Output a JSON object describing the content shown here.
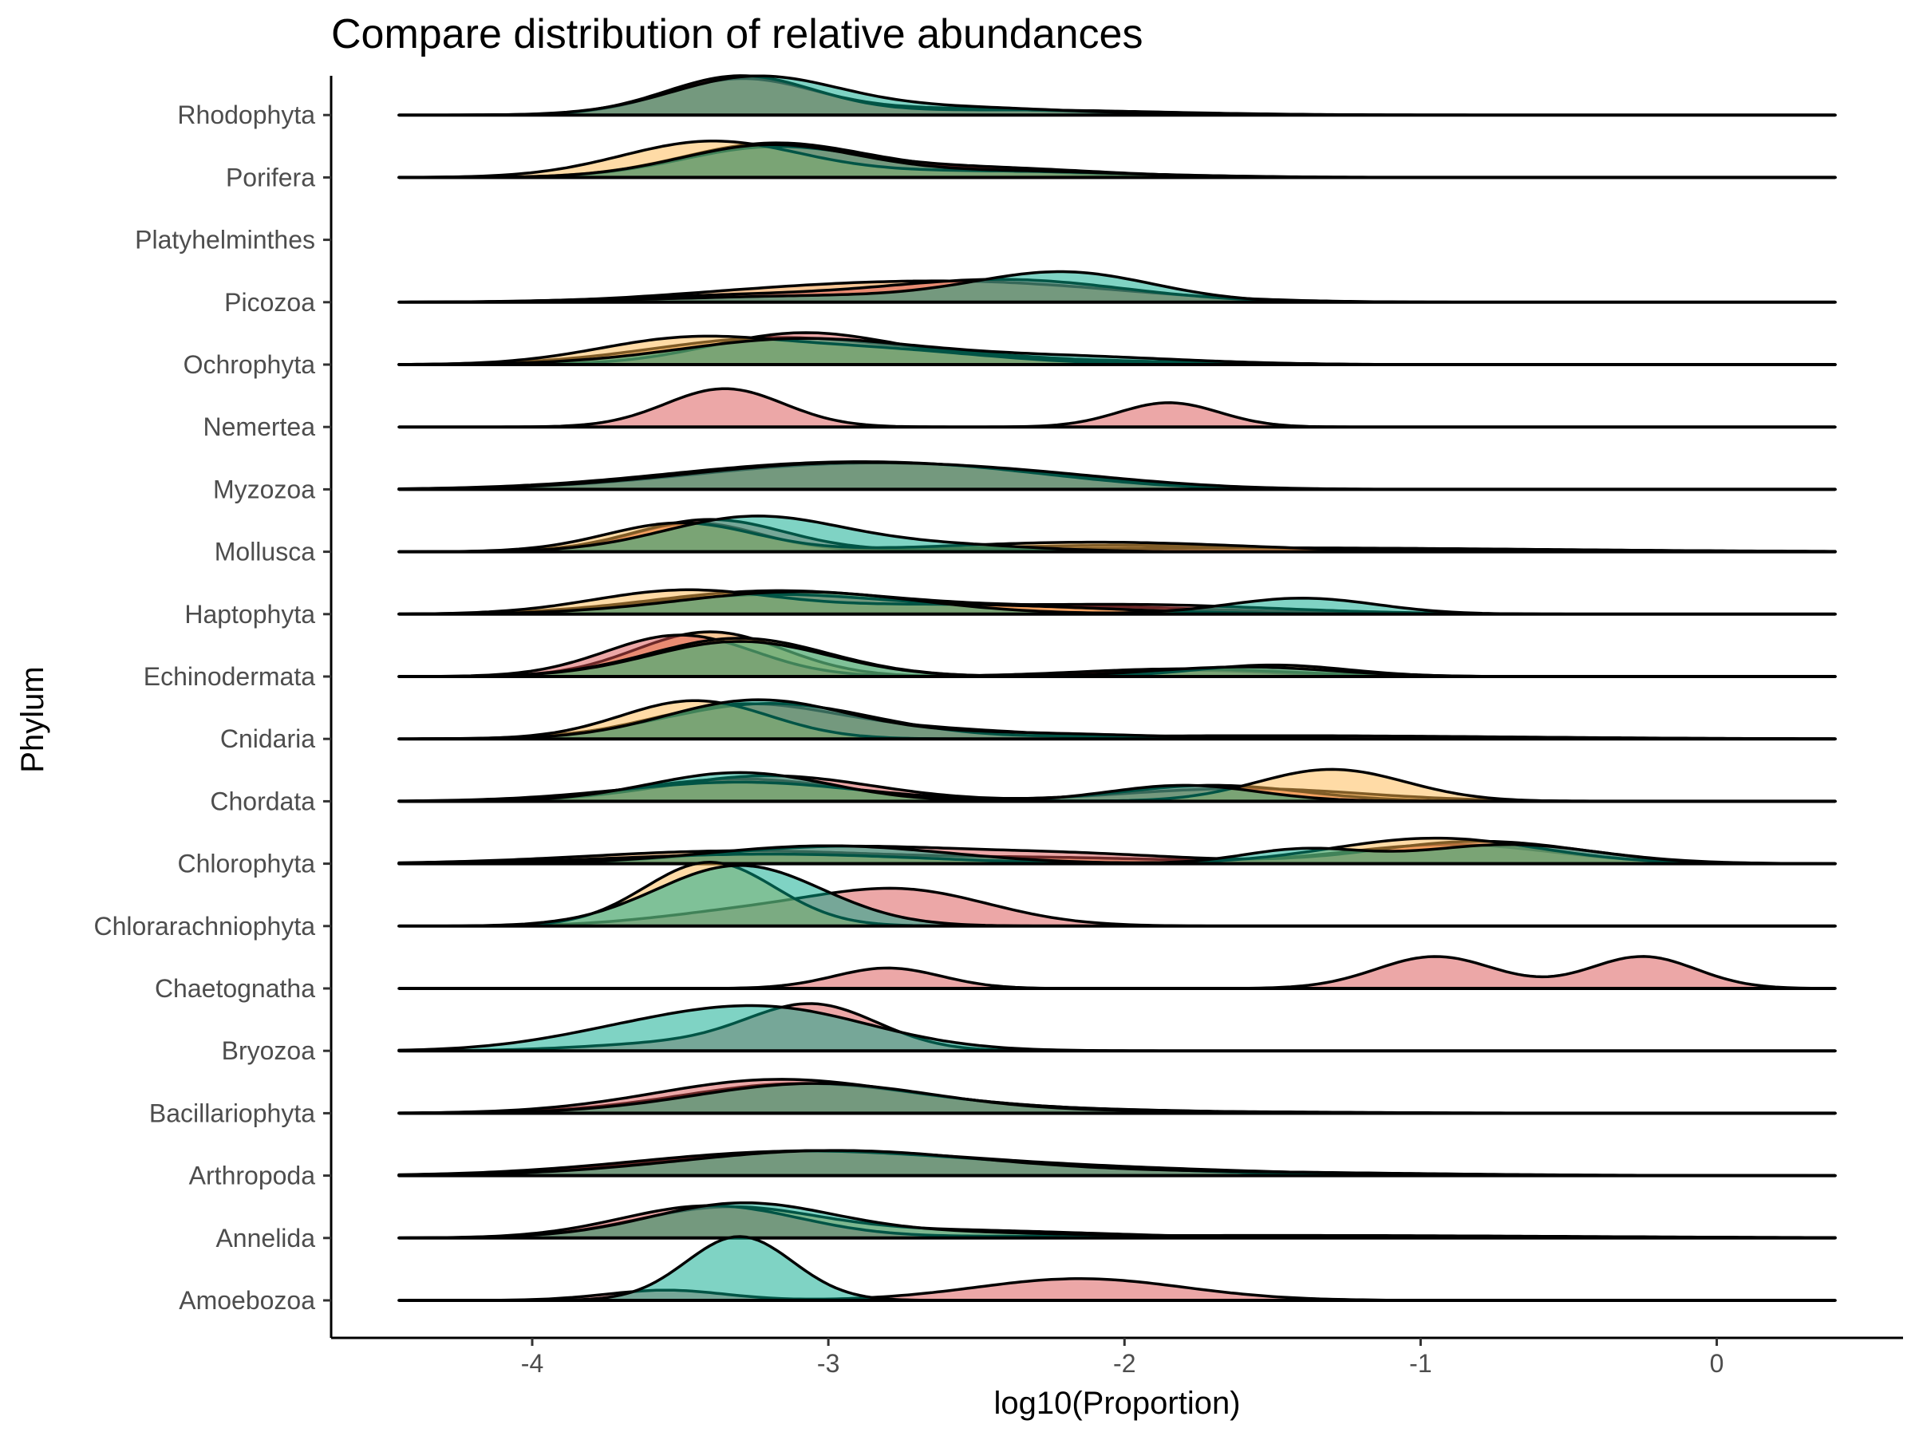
{
  "chart_data": {
    "type": "ridgeline",
    "title": "Compare distribution of relative abundances",
    "xlabel": "log10(Proportion)",
    "ylabel": "Phylum",
    "xlim": [
      -4.45,
      0.4
    ],
    "x_ticks": [
      -4,
      -3,
      -2,
      -1,
      0
    ],
    "x_tick_labels": [
      "-4",
      "-3",
      "-2",
      "-1",
      "0"
    ],
    "grid": false,
    "legend": "none",
    "group_colors": {
      "A": "#f28e2b",
      "B": "#d94f4f",
      "C": "#ffb74d",
      "D": "#00a88a"
    },
    "categories": [
      "Amoebozoa",
      "Annelida",
      "Arthropoda",
      "Bacillariophyta",
      "Bryozoa",
      "Chaetognatha",
      "Chlorarachniophyta",
      "Chlorophyta",
      "Chordata",
      "Cnidaria",
      "Echinodermata",
      "Haptophyta",
      "Mollusca",
      "Myzozoa",
      "Nemertea",
      "Ochrophyta",
      "Picozoa",
      "Platyhelminthes",
      "Porifera",
      "Rhodophyta"
    ],
    "ridges": [
      {
        "phylum": "Amoebozoa",
        "densities": [
          {
            "group": "B",
            "peaks": [
              [
                -3.55,
                0.16,
                0.2
              ],
              [
                -2.15,
                0.34,
                0.35
              ]
            ]
          },
          {
            "group": "D",
            "peaks": [
              [
                -3.3,
                1.0,
                0.18
              ]
            ]
          }
        ]
      },
      {
        "phylum": "Annelida",
        "densities": [
          {
            "group": "A",
            "peaks": [
              [
                -3.35,
                0.45,
                0.3
              ],
              [
                -2.6,
                0.12,
                0.5
              ]
            ]
          },
          {
            "group": "B",
            "peaks": [
              [
                -3.4,
                0.5,
                0.3
              ],
              [
                -1.5,
                0.04,
                1.0
              ]
            ]
          },
          {
            "group": "D",
            "peaks": [
              [
                -3.3,
                0.48,
                0.3
              ],
              [
                -2.8,
                0.1,
                0.6
              ]
            ]
          }
        ]
      },
      {
        "phylum": "Arthropoda",
        "densities": [
          {
            "group": "A",
            "peaks": [
              [
                -3.1,
                0.35,
                0.5
              ],
              [
                -2.2,
                0.12,
                0.6
              ]
            ]
          },
          {
            "group": "B",
            "peaks": [
              [
                -3.2,
                0.3,
                0.5
              ],
              [
                -2.5,
                0.15,
                0.6
              ]
            ]
          },
          {
            "group": "D",
            "peaks": [
              [
                -3.0,
                0.38,
                0.5
              ],
              [
                -1.8,
                0.06,
                0.7
              ]
            ]
          }
        ]
      },
      {
        "phylum": "Bacillariophyta",
        "densities": [
          {
            "group": "A",
            "peaks": [
              [
                -3.1,
                0.45,
                0.4
              ],
              [
                -2.3,
                0.06,
                0.5
              ]
            ]
          },
          {
            "group": "B",
            "peaks": [
              [
                -3.2,
                0.48,
                0.4
              ],
              [
                -2.6,
                0.1,
                0.5
              ]
            ]
          },
          {
            "group": "D",
            "peaks": [
              [
                -3.05,
                0.46,
                0.4
              ],
              [
                -2.0,
                0.03,
                0.6
              ]
            ]
          }
        ]
      },
      {
        "phylum": "Bryozoa",
        "densities": [
          {
            "group": "B",
            "peaks": [
              [
                -3.05,
                0.7,
                0.22
              ],
              [
                -3.5,
                0.12,
                0.3
              ]
            ]
          },
          {
            "group": "D",
            "peaks": [
              [
                -3.2,
                0.65,
                0.35
              ],
              [
                -3.7,
                0.2,
                0.3
              ]
            ]
          }
        ]
      },
      {
        "phylum": "Chaetognatha",
        "densities": [
          {
            "group": "B",
            "peaks": [
              [
                -2.8,
                0.32,
                0.18
              ],
              [
                -0.95,
                0.5,
                0.2
              ],
              [
                -0.25,
                0.5,
                0.18
              ]
            ]
          }
        ]
      },
      {
        "phylum": "Chlorarachniophyta",
        "densities": [
          {
            "group": "B",
            "peaks": [
              [
                -2.75,
                0.55,
                0.3
              ],
              [
                -3.3,
                0.2,
                0.3
              ]
            ]
          },
          {
            "group": "C",
            "peaks": [
              [
                -3.4,
                1.0,
                0.22
              ]
            ]
          },
          {
            "group": "D",
            "peaks": [
              [
                -3.3,
                0.95,
                0.28
              ]
            ]
          }
        ]
      },
      {
        "phylum": "Chlorophyta",
        "densities": [
          {
            "group": "A",
            "peaks": [
              [
                -3.3,
                0.2,
                0.5
              ],
              [
                -0.9,
                0.3,
                0.35
              ],
              [
                -2.2,
                0.08,
                0.4
              ]
            ]
          },
          {
            "group": "B",
            "peaks": [
              [
                -3.0,
                0.25,
                0.4
              ],
              [
                -2.2,
                0.15,
                0.4
              ],
              [
                -0.8,
                0.35,
                0.35
              ]
            ]
          },
          {
            "group": "C",
            "peaks": [
              [
                -3.2,
                0.15,
                0.5
              ],
              [
                -0.95,
                0.4,
                0.35
              ]
            ]
          },
          {
            "group": "D",
            "peaks": [
              [
                -3.0,
                0.28,
                0.4
              ],
              [
                -1.4,
                0.22,
                0.2
              ],
              [
                -0.7,
                0.3,
                0.3
              ]
            ]
          }
        ]
      },
      {
        "phylum": "Chordata",
        "densities": [
          {
            "group": "A",
            "peaks": [
              [
                -3.3,
                0.35,
                0.35
              ],
              [
                -1.6,
                0.2,
                0.4
              ]
            ]
          },
          {
            "group": "B",
            "peaks": [
              [
                -3.2,
                0.4,
                0.35
              ],
              [
                -1.7,
                0.25,
                0.3
              ]
            ]
          },
          {
            "group": "C",
            "peaks": [
              [
                -3.3,
                0.3,
                0.4
              ],
              [
                -1.3,
                0.5,
                0.25
              ]
            ]
          },
          {
            "group": "D",
            "peaks": [
              [
                -3.3,
                0.45,
                0.3
              ],
              [
                -1.8,
                0.25,
                0.25
              ]
            ]
          }
        ]
      },
      {
        "phylum": "Cnidaria",
        "densities": [
          {
            "group": "A",
            "peaks": [
              [
                -3.3,
                0.5,
                0.3
              ],
              [
                -2.7,
                0.15,
                0.4
              ]
            ]
          },
          {
            "group": "B",
            "peaks": [
              [
                -3.2,
                0.55,
                0.35
              ],
              [
                -1.5,
                0.05,
                0.8
              ]
            ]
          },
          {
            "group": "C",
            "peaks": [
              [
                -3.45,
                0.6,
                0.25
              ]
            ]
          },
          {
            "group": "D",
            "peaks": [
              [
                -3.25,
                0.58,
                0.3
              ],
              [
                -2.5,
                0.1,
                0.5
              ]
            ]
          }
        ]
      },
      {
        "phylum": "Echinodermata",
        "densities": [
          {
            "group": "A",
            "peaks": [
              [
                -3.4,
                0.7,
                0.25
              ],
              [
                -1.8,
                0.1,
                0.3
              ]
            ]
          },
          {
            "group": "B",
            "peaks": [
              [
                -3.5,
                0.65,
                0.25
              ],
              [
                -1.8,
                0.12,
                0.35
              ]
            ]
          },
          {
            "group": "C",
            "peaks": [
              [
                -3.3,
                0.6,
                0.3
              ],
              [
                -1.5,
                0.18,
                0.25
              ]
            ]
          },
          {
            "group": "D",
            "peaks": [
              [
                -3.3,
                0.55,
                0.3
              ],
              [
                -1.6,
                0.15,
                0.3
              ]
            ]
          }
        ]
      },
      {
        "phylum": "Haptophyta",
        "densities": [
          {
            "group": "A",
            "peaks": [
              [
                -3.2,
                0.35,
                0.4
              ],
              [
                -2.2,
                0.12,
                0.5
              ]
            ]
          },
          {
            "group": "B",
            "peaks": [
              [
                -3.2,
                0.3,
                0.4
              ],
              [
                -2.0,
                0.15,
                0.5
              ]
            ]
          },
          {
            "group": "C",
            "peaks": [
              [
                -3.5,
                0.35,
                0.3
              ],
              [
                -2.6,
                0.15,
                0.5
              ]
            ]
          },
          {
            "group": "D",
            "peaks": [
              [
                -3.1,
                0.35,
                0.4
              ],
              [
                -1.4,
                0.25,
                0.25
              ]
            ]
          }
        ]
      },
      {
        "phylum": "Mollusca",
        "densities": [
          {
            "group": "A",
            "peaks": [
              [
                -3.45,
                0.45,
                0.22
              ],
              [
                -2.0,
                0.1,
                0.5
              ]
            ]
          },
          {
            "group": "B",
            "peaks": [
              [
                -3.4,
                0.5,
                0.25
              ],
              [
                -1.5,
                0.06,
                0.9
              ]
            ]
          },
          {
            "group": "C",
            "peaks": [
              [
                -3.5,
                0.45,
                0.25
              ],
              [
                -2.1,
                0.15,
                0.5
              ]
            ]
          },
          {
            "group": "D",
            "peaks": [
              [
                -3.25,
                0.55,
                0.3
              ],
              [
                -2.6,
                0.1,
                0.3
              ]
            ]
          }
        ]
      },
      {
        "phylum": "Myzozoa",
        "densities": [
          {
            "group": "A",
            "peaks": [
              [
                -3.0,
                0.35,
                0.5
              ],
              [
                -2.4,
                0.15,
                0.4
              ]
            ]
          },
          {
            "group": "B",
            "peaks": [
              [
                -3.1,
                0.35,
                0.5
              ],
              [
                -2.5,
                0.18,
                0.4
              ]
            ]
          },
          {
            "group": "D",
            "peaks": [
              [
                -3.0,
                0.38,
                0.5
              ],
              [
                -2.3,
                0.15,
                0.4
              ]
            ]
          }
        ]
      },
      {
        "phylum": "Nemertea",
        "densities": [
          {
            "group": "B",
            "peaks": [
              [
                -3.35,
                0.6,
                0.2
              ],
              [
                -1.85,
                0.38,
                0.17
              ]
            ]
          }
        ]
      },
      {
        "phylum": "Ochrophyta",
        "densities": [
          {
            "group": "A",
            "peaks": [
              [
                -3.2,
                0.4,
                0.4
              ],
              [
                -2.5,
                0.1,
                0.4
              ]
            ]
          },
          {
            "group": "B",
            "peaks": [
              [
                -3.1,
                0.45,
                0.3
              ],
              [
                -2.5,
                0.1,
                0.5
              ]
            ]
          },
          {
            "group": "C",
            "peaks": [
              [
                -3.5,
                0.35,
                0.3
              ],
              [
                -2.9,
                0.25,
                0.4
              ]
            ]
          },
          {
            "group": "D",
            "peaks": [
              [
                -3.1,
                0.4,
                0.4
              ],
              [
                -2.2,
                0.12,
                0.4
              ]
            ]
          }
        ]
      },
      {
        "phylum": "Picozoa",
        "densities": [
          {
            "group": "A",
            "peaks": [
              [
                -2.5,
                0.3,
                0.5
              ],
              [
                -3.2,
                0.12,
                0.4
              ]
            ]
          },
          {
            "group": "B",
            "peaks": [
              [
                -2.4,
                0.35,
                0.4
              ],
              [
                -3.3,
                0.1,
                0.4
              ]
            ]
          },
          {
            "group": "D",
            "peaks": [
              [
                -2.2,
                0.45,
                0.3
              ],
              [
                -3.0,
                0.1,
                0.5
              ]
            ]
          }
        ]
      },
      {
        "phylum": "Platyhelminthes",
        "densities": []
      },
      {
        "phylum": "Porifera",
        "densities": [
          {
            "group": "A",
            "peaks": [
              [
                -3.2,
                0.5,
                0.3
              ],
              [
                -2.6,
                0.12,
                0.4
              ]
            ]
          },
          {
            "group": "B",
            "peaks": [
              [
                -3.2,
                0.45,
                0.3
              ],
              [
                -2.5,
                0.15,
                0.4
              ]
            ]
          },
          {
            "group": "C",
            "peaks": [
              [
                -3.4,
                0.55,
                0.3
              ],
              [
                -2.5,
                0.1,
                0.5
              ]
            ]
          },
          {
            "group": "D",
            "peaks": [
              [
                -3.2,
                0.5,
                0.3
              ],
              [
                -2.4,
                0.1,
                0.4
              ]
            ]
          }
        ]
      },
      {
        "phylum": "Rhodophyta",
        "densities": [
          {
            "group": "A",
            "peaks": [
              [
                -3.3,
                0.55,
                0.25
              ],
              [
                -2.6,
                0.1,
                0.4
              ]
            ]
          },
          {
            "group": "B",
            "peaks": [
              [
                -3.3,
                0.6,
                0.25
              ],
              [
                -2.4,
                0.08,
                0.5
              ]
            ]
          },
          {
            "group": "D",
            "peaks": [
              [
                -3.25,
                0.58,
                0.28
              ],
              [
                -2.6,
                0.12,
                0.4
              ]
            ]
          }
        ]
      }
    ]
  }
}
